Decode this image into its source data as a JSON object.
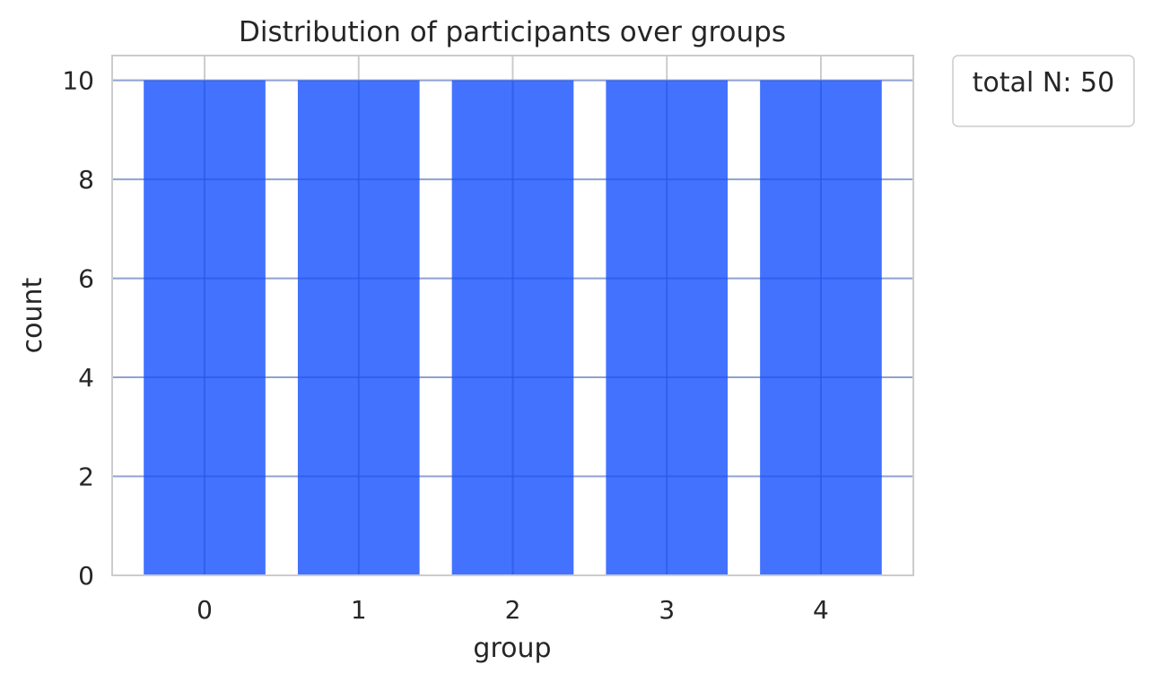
{
  "chart_data": {
    "type": "bar",
    "title": "Distribution of participants over groups",
    "xlabel": "group",
    "ylabel": "count",
    "categories": [
      "0",
      "1",
      "2",
      "3",
      "4"
    ],
    "values": [
      10,
      10,
      10,
      10,
      10
    ],
    "ylim": [
      0,
      10.5
    ],
    "yticks": [
      0,
      2,
      4,
      6,
      8,
      10
    ],
    "grid": true,
    "legend": {
      "text": "total N: 50",
      "placement": "outside-top-right"
    },
    "colors": {
      "bar": "#1a53ff",
      "grid": "#cccccc",
      "spine": "#cccccc",
      "text": "#262626"
    }
  }
}
